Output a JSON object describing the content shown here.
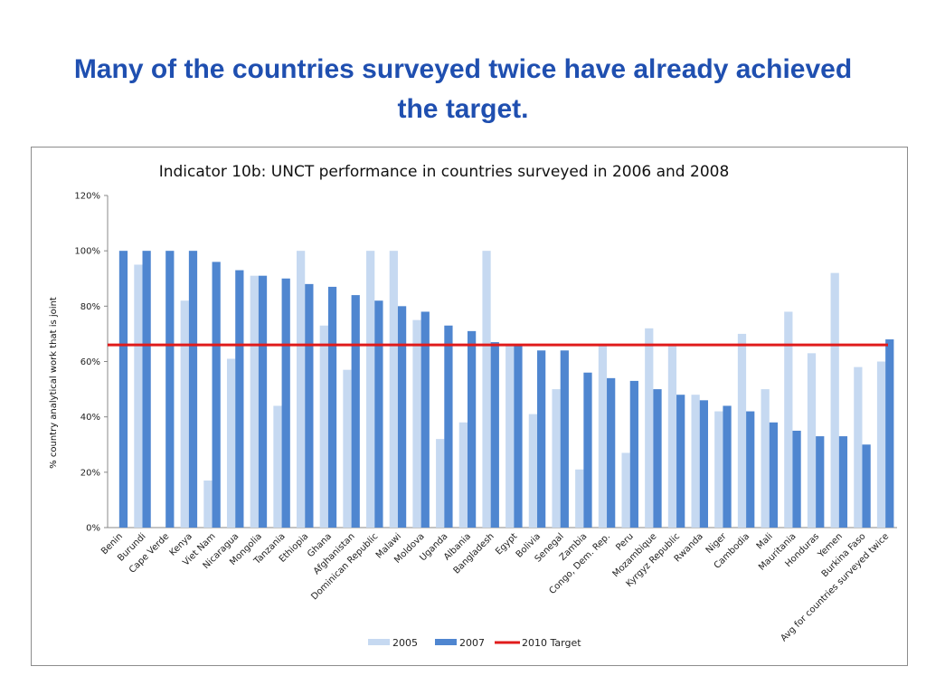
{
  "slide": {
    "title": "Many of the countries surveyed twice have already achieved the target."
  },
  "colors": {
    "series_2005": "#c6d9f1",
    "series_2007": "#4f86d0",
    "target": "#e01b1b",
    "title": "#1f4fb0"
  },
  "chart_data": {
    "type": "bar",
    "title": "Indicator 10b: UNCT performance in countries surveyed in 2006 and 2008",
    "ylabel": "% country analytical work that is joint",
    "xlabel": "",
    "ylim": [
      0,
      120
    ],
    "yticks": [
      "0%",
      "20%",
      "40%",
      "60%",
      "80%",
      "100%",
      "120%"
    ],
    "grid": false,
    "legend_position": "bottom",
    "categories": [
      "Benin",
      "Burundi",
      "Cape Verde",
      "Kenya",
      "Viet Nam",
      "Nicaragua",
      "Mongolia",
      "Tanzania",
      "Ethiopia",
      "Ghana",
      "Afghanistan",
      "Dominican Republic",
      "Malawi",
      "Moldova",
      "Uganda",
      "Albania",
      "Bangladesh",
      "Egypt",
      "Bolivia",
      "Senegal",
      "Zambia",
      "Congo, Dem. Rep.",
      "Peru",
      "Mozambique",
      "Kyrgyz Republic",
      "Rwanda",
      "Niger",
      "Cambodia",
      "Mali",
      "Mauritania",
      "Honduras",
      "Yemen",
      "Burkina Faso",
      "Avg for countries surveyed twice"
    ],
    "series": [
      {
        "name": "2005",
        "values": [
          0,
          95,
          0,
          82,
          17,
          61,
          91,
          44,
          100,
          73,
          57,
          100,
          100,
          75,
          32,
          38,
          100,
          66,
          41,
          50,
          21,
          66,
          27,
          72,
          66,
          48,
          42,
          70,
          50,
          78,
          63,
          92,
          58,
          60
        ]
      },
      {
        "name": "2007",
        "values": [
          100,
          100,
          100,
          100,
          96,
          93,
          91,
          90,
          88,
          87,
          84,
          82,
          80,
          78,
          73,
          71,
          67,
          66,
          64,
          64,
          56,
          54,
          53,
          50,
          48,
          46,
          44,
          42,
          38,
          35,
          33,
          33,
          30,
          68
        ]
      }
    ],
    "target": {
      "name": "2010 Target",
      "value": 66
    }
  }
}
